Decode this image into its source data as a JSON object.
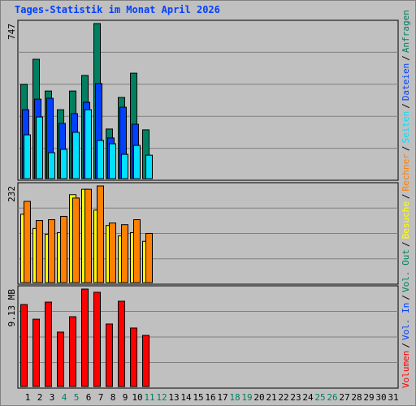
{
  "title": "Tages-Statistik im Monat April 2026",
  "separator": "/",
  "chart_data": [
    {
      "type": "bar",
      "ylabel": "747",
      "ylim": [
        0,
        747
      ],
      "series": [
        {
          "name": "Anfragen",
          "color": "#008060",
          "values": [
            454,
            575,
            422,
            332,
            422,
            497,
            747,
            239,
            391,
            508,
            235,
            null,
            null,
            null,
            null,
            null,
            null,
            null,
            null,
            null,
            null,
            null,
            null,
            null,
            null,
            null,
            null,
            null,
            null,
            null,
            null
          ]
        },
        {
          "name": "Dateien",
          "color": "#0040ff",
          "values": [
            332,
            383,
            387,
            266,
            313,
            368,
            458,
            196,
            344,
            262,
            null,
            null,
            null,
            null,
            null,
            null,
            null,
            null,
            null,
            null,
            null,
            null,
            null,
            null,
            null,
            null,
            null,
            null,
            null,
            null,
            null
          ]
        },
        {
          "name": "Seiten",
          "color": "#00e0ff",
          "values": [
            211,
            297,
            125,
            141,
            223,
            332,
            184,
            168,
            117,
            160,
            113,
            null,
            null,
            null,
            null,
            null,
            null,
            null,
            null,
            null,
            null,
            null,
            null,
            null,
            null,
            null,
            null,
            null,
            null,
            null,
            null
          ]
        }
      ]
    },
    {
      "type": "bar",
      "ylabel": "232",
      "ylim": [
        0,
        232
      ],
      "series": [
        {
          "name": "Besuche",
          "color": "#ffff00",
          "values": [
            164,
            130,
            116,
            120,
            211,
            224,
            174,
            137,
            112,
            120,
            99,
            null,
            null,
            null,
            null,
            null,
            null,
            null,
            null,
            null,
            null,
            null,
            null,
            null,
            null,
            null,
            null,
            null,
            null,
            null,
            null
          ]
        },
        {
          "name": "Rechner",
          "color": "#ff8000",
          "values": [
            195,
            149,
            151,
            159,
            203,
            224,
            232,
            143,
            139,
            151,
            118,
            null,
            null,
            null,
            null,
            null,
            null,
            null,
            null,
            null,
            null,
            null,
            null,
            null,
            null,
            null,
            null,
            null,
            null,
            null,
            null
          ]
        }
      ]
    },
    {
      "type": "bar",
      "ylabel": "9.13 MB",
      "ylim": [
        0,
        9.13
      ],
      "categories": [
        1,
        2,
        3,
        4,
        5,
        6,
        7,
        8,
        9,
        10,
        11,
        12,
        13,
        14,
        15,
        16,
        17,
        18,
        19,
        20,
        21,
        22,
        23,
        24,
        25,
        26,
        27,
        28,
        29,
        30,
        31
      ],
      "category_colors": [
        "#000000",
        "#000000",
        "#000000",
        "#008060",
        "#008060",
        "#000000",
        "#000000",
        "#000000",
        "#000000",
        "#000000",
        "#008060",
        "#008060",
        "#000000",
        "#000000",
        "#000000",
        "#000000",
        "#000000",
        "#008060",
        "#008060",
        "#000000",
        "#000000",
        "#000000",
        "#000000",
        "#000000",
        "#008060",
        "#008060",
        "#000000",
        "#000000",
        "#000000",
        "#000000",
        "#000000"
      ],
      "series": [
        {
          "name": "Volumen",
          "color": "#ff0000",
          "values": [
            7.68,
            6.31,
            7.91,
            5.1,
            6.54,
            9.13,
            8.83,
            5.86,
            7.99,
            5.48,
            4.79,
            null,
            null,
            null,
            null,
            null,
            null,
            null,
            null,
            null,
            null,
            null,
            null,
            null,
            null,
            null,
            null,
            null,
            null,
            null,
            null
          ]
        },
        {
          "name": "Vol. In",
          "color": "#0040ff",
          "values": [
            null,
            null,
            null,
            null,
            null,
            null,
            null,
            null,
            null,
            null,
            null,
            null,
            null,
            null,
            null,
            null,
            null,
            null,
            null,
            null,
            null,
            null,
            null,
            null,
            null,
            null,
            null,
            null,
            null,
            null,
            null
          ]
        },
        {
          "name": "Vol. Out",
          "color": "#008060",
          "values": [
            null,
            null,
            null,
            null,
            null,
            null,
            null,
            null,
            null,
            null,
            null,
            null,
            null,
            null,
            null,
            null,
            null,
            null,
            null,
            null,
            null,
            null,
            null,
            null,
            null,
            null,
            null,
            null,
            null,
            null,
            null
          ]
        }
      ]
    }
  ]
}
